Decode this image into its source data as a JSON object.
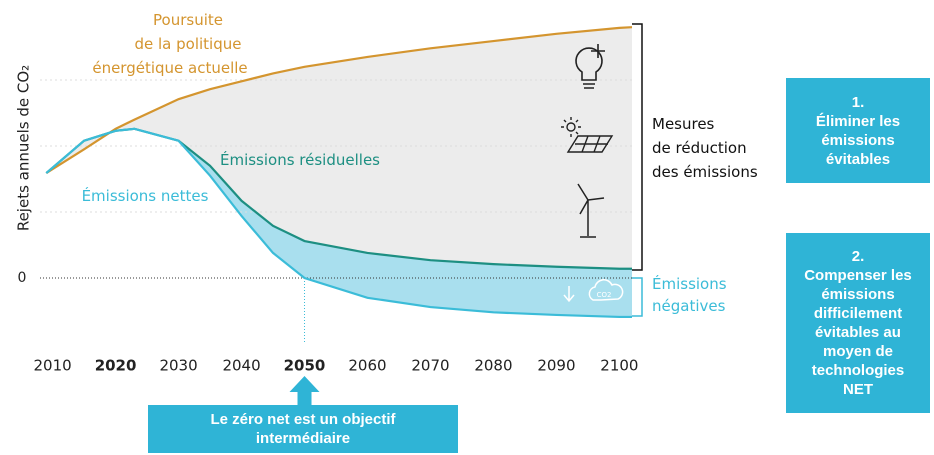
{
  "chart_data": {
    "type": "line",
    "ylabel": "Rejets annuels de CO₂",
    "x": [
      2009,
      2015,
      2020,
      2023,
      2030,
      2035,
      2040,
      2045,
      2050,
      2060,
      2070,
      2080,
      2090,
      2100,
      2102
    ],
    "series": [
      {
        "name": [
          "Poursuite",
          "de la politique",
          "énergétique actuelle"
        ],
        "color": "#d4952f",
        "area_fill": "#ececec",
        "values": [
          1.59,
          1.95,
          2.26,
          2.4,
          2.71,
          2.86,
          2.98,
          3.1,
          3.2,
          3.35,
          3.48,
          3.59,
          3.7,
          3.79,
          3.8
        ]
      },
      {
        "name": [
          "Émissions résiduelles"
        ],
        "color": "#1d8f82",
        "area_fill": "#a9dfee",
        "values": [
          1.59,
          2.08,
          2.23,
          2.26,
          2.08,
          1.7,
          1.17,
          0.79,
          0.56,
          0.38,
          0.27,
          0.21,
          0.17,
          0.14,
          0.14
        ]
      },
      {
        "name": [
          "Émissions nettes"
        ],
        "color": "#3bbcd8",
        "values": [
          1.59,
          2.08,
          2.23,
          2.26,
          2.08,
          1.55,
          0.94,
          0.38,
          0,
          -0.3,
          -0.44,
          -0.52,
          -0.56,
          -0.59,
          -0.59
        ]
      }
    ],
    "xlim": [
      2008,
      2102
    ],
    "xticks": [
      2010,
      2020,
      2030,
      2040,
      2050,
      2060,
      2070,
      2080,
      2090,
      2100
    ],
    "bold_xticks": [
      2020,
      2050
    ],
    "ylim": [
      -1,
      4
    ],
    "yticks": [
      0
    ],
    "grid_lines": [
      1,
      2,
      3
    ],
    "highlight_x": 2050,
    "bracket_label": [
      "Mesures",
      "de réduction",
      "des émissions"
    ],
    "negative_label": [
      "Émissions",
      "négatives"
    ],
    "cloud_text": "CO2",
    "step1": {
      "number": "1.",
      "text": "Éliminer les émissions évitables"
    },
    "step2": {
      "number": "2.",
      "text": "Compenser les émissions difficilement évitables au moyen de technologies NET"
    },
    "note": "Le zéro net est un objectif intermédiaire"
  }
}
